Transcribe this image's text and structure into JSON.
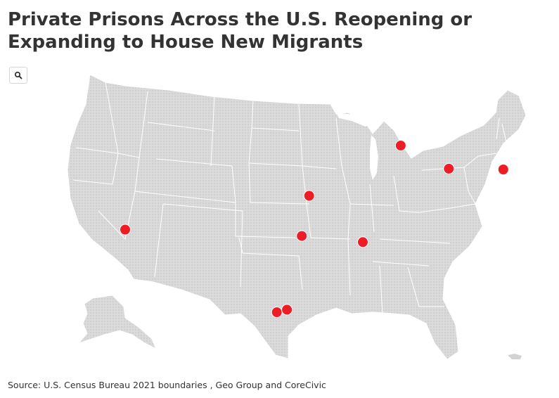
{
  "title": "Private Prisons Across the U.S. Reopening or Expanding to House New Migrants",
  "source": "Source: U.S. Census Bureau 2021 boundaries , Geo Group and CoreCivic",
  "zoom_button": {
    "icon": "search-icon"
  },
  "colors": {
    "land": "#d8d8d8",
    "border": "#ffffff",
    "marker": "#ee1c25",
    "title": "#333333"
  },
  "markers": [
    {
      "id": "california-nevada",
      "lon": -115.6,
      "lat": 36.3
    },
    {
      "id": "kansas",
      "lon": -95.7,
      "lat": 38.9
    },
    {
      "id": "oklahoma",
      "lon": -96.5,
      "lat": 35.3
    },
    {
      "id": "tennessee-mississippi",
      "lon": -89.9,
      "lat": 34.6
    },
    {
      "id": "michigan",
      "lon": -85.8,
      "lat": 43.2
    },
    {
      "id": "ohio",
      "lon": -80.6,
      "lat": 41.0
    },
    {
      "id": "new-jersey",
      "lon": -74.7,
      "lat": 40.8
    },
    {
      "id": "texas-laredo",
      "lon": -99.2,
      "lat": 28.5
    },
    {
      "id": "texas-pearsall",
      "lon": -98.1,
      "lat": 28.7
    }
  ]
}
